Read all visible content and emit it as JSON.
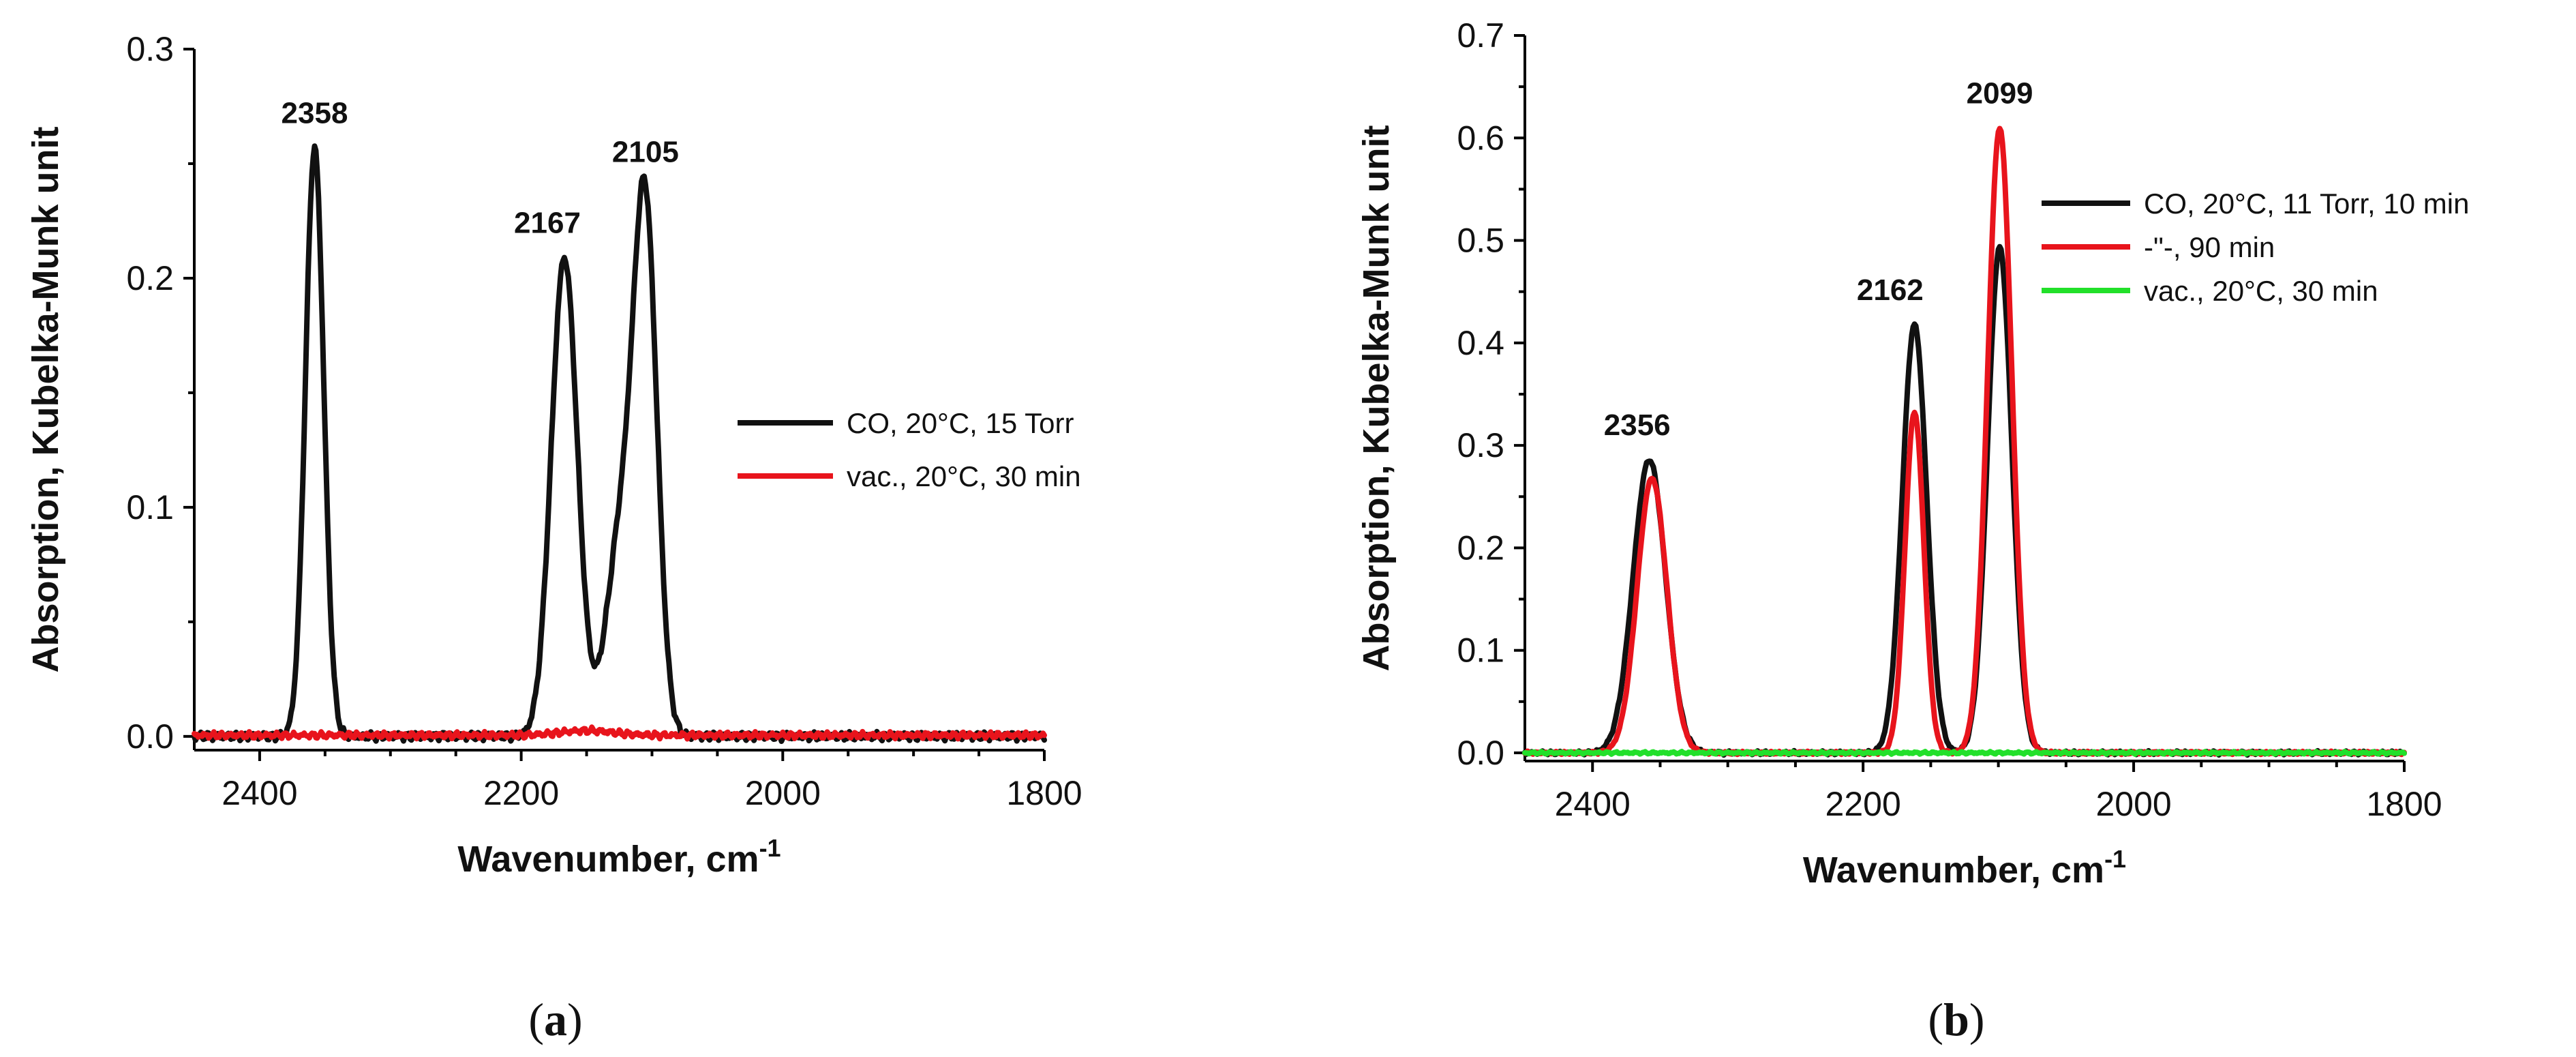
{
  "figure_panels": [
    {
      "label_open": "(",
      "label_letter": "a",
      "label_close": ")"
    },
    {
      "label_open": "(",
      "label_letter": "b",
      "label_close": ")"
    }
  ],
  "chart_data": [
    {
      "type": "line",
      "title": "",
      "xlabel": "Wavenumber, cm",
      "xlabel_superscript": "-1",
      "ylabel": "Absorption, Kubelka-Munk unit",
      "xlim": [
        2450,
        1800
      ],
      "ylim": [
        -0.006,
        0.3
      ],
      "x_ticks": [
        2400,
        2200,
        2000,
        1800
      ],
      "y_ticks": [
        0.0,
        0.1,
        0.2,
        0.3
      ],
      "y_tick_labels": [
        "0.0",
        "0.1",
        "0.2",
        "0.3"
      ],
      "grid": false,
      "legend_position": "center-right",
      "series": [
        {
          "name": "CO, 20°C, 15 Torr",
          "color": "#111111",
          "baseline": 0.0,
          "noise": 0.002,
          "peaks": [
            {
              "center": 2358,
              "height": 0.257,
              "sigma": 7
            },
            {
              "center": 2167,
              "height": 0.209,
              "sigma": 10
            },
            {
              "center": 2124,
              "height": 0.085,
              "sigma": 11
            },
            {
              "center": 2105,
              "height": 0.223,
              "sigma": 9
            }
          ]
        },
        {
          "name": "vac., 20°C, 30 min",
          "color": "#e8141c",
          "baseline": 0.0005,
          "noise": 0.0015,
          "peaks": [
            {
              "center": 2150,
              "height": 0.002,
              "sigma": 20
            }
          ]
        }
      ],
      "annotations": [
        {
          "text": "2358",
          "x": 2358,
          "y": 0.257
        },
        {
          "text": "2167",
          "x": 2180,
          "y": 0.209
        },
        {
          "text": "2105",
          "x": 2105,
          "y": 0.24
        }
      ]
    },
    {
      "type": "line",
      "title": "",
      "xlabel": "Wavenumber, cm",
      "xlabel_superscript": "-1",
      "ylabel": "Absorption, Kubelka-Munk unit",
      "xlim": [
        2450,
        1800
      ],
      "ylim": [
        -0.008,
        0.7
      ],
      "x_ticks": [
        2400,
        2200,
        2000,
        1800
      ],
      "y_ticks": [
        0.0,
        0.1,
        0.2,
        0.3,
        0.4,
        0.5,
        0.6,
        0.7
      ],
      "y_tick_labels": [
        "0.0",
        "0.1",
        "0.2",
        "0.3",
        "0.4",
        "0.5",
        "0.6",
        "0.7"
      ],
      "grid": false,
      "legend_position": "top-right",
      "series": [
        {
          "name": "CO, 20°C, 11 Torr, 10 min",
          "color": "#111111",
          "baseline": 0.0,
          "noise": 0.002,
          "peaks": [
            {
              "center": 2358,
              "height": 0.286,
              "sigma": 12
            },
            {
              "center": 2162,
              "height": 0.418,
              "sigma": 9
            },
            {
              "center": 2099,
              "height": 0.493,
              "sigma": 9
            }
          ]
        },
        {
          "name": "-\"-, 90 min",
          "color": "#e8141c",
          "baseline": 0.0,
          "noise": 0.0015,
          "peaks": [
            {
              "center": 2356,
              "height": 0.268,
              "sigma": 11
            },
            {
              "center": 2162,
              "height": 0.333,
              "sigma": 7
            },
            {
              "center": 2099,
              "height": 0.61,
              "sigma": 9
            }
          ]
        },
        {
          "name": "vac., 20°C, 30 min",
          "color": "#22e02a",
          "baseline": 0.0,
          "noise": 0.0012,
          "peaks": []
        }
      ],
      "annotations": [
        {
          "text": "2356",
          "x": 2367,
          "y": 0.286
        },
        {
          "text": "2162",
          "x": 2180,
          "y": 0.418
        },
        {
          "text": "2099",
          "x": 2099,
          "y": 0.61
        }
      ]
    }
  ]
}
